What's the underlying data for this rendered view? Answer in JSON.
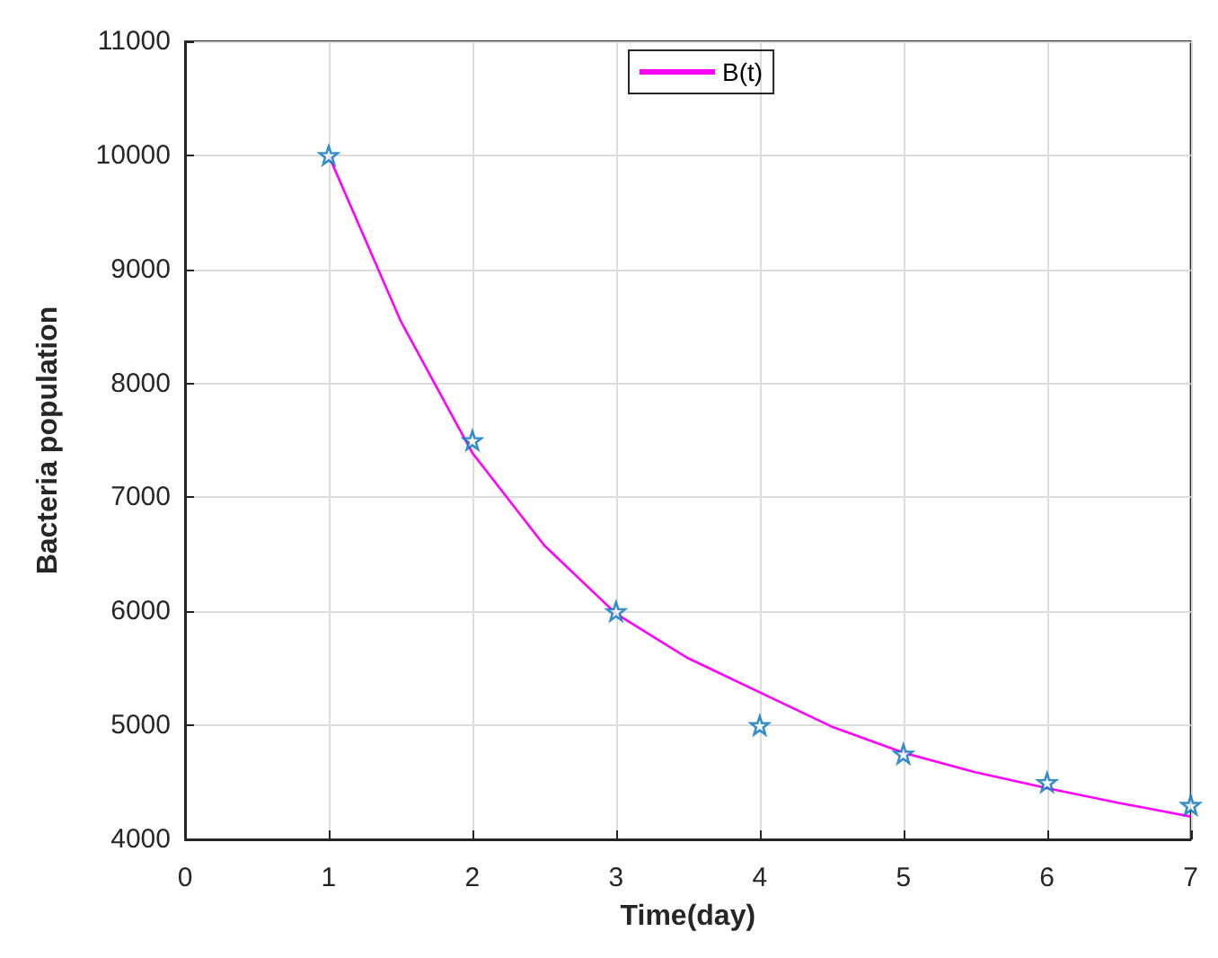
{
  "chart_data": {
    "type": "line",
    "xlabel": "Time(day)",
    "ylabel": "Bacteria population",
    "xlim": [
      0,
      7
    ],
    "xticks": [
      0,
      1,
      2,
      3,
      4,
      5,
      6,
      7
    ],
    "ylim": [
      4000,
      11000
    ],
    "yticks": [
      4000,
      5000,
      6000,
      7000,
      8000,
      9000,
      10000,
      11000
    ],
    "grid": true,
    "legend": "top",
    "series": [
      {
        "name": "B(t)",
        "color": "#ff00ff",
        "marker": "none",
        "x": [
          1,
          1.5,
          2,
          2.5,
          3,
          3.5,
          4,
          4.5,
          5,
          5.5,
          6,
          6.5,
          7
        ],
        "values": [
          10000,
          8550,
          7390,
          6580,
          5980,
          5590,
          5290,
          4990,
          4760,
          4590,
          4450,
          4320,
          4200
        ]
      },
      {
        "type": "scatter",
        "color": "#0072bd",
        "marker": "star",
        "x": [
          1,
          2,
          3,
          4,
          5,
          6,
          7
        ],
        "values": [
          10000,
          7500,
          6000,
          5000,
          4750,
          4500,
          4300
        ]
      }
    ]
  }
}
